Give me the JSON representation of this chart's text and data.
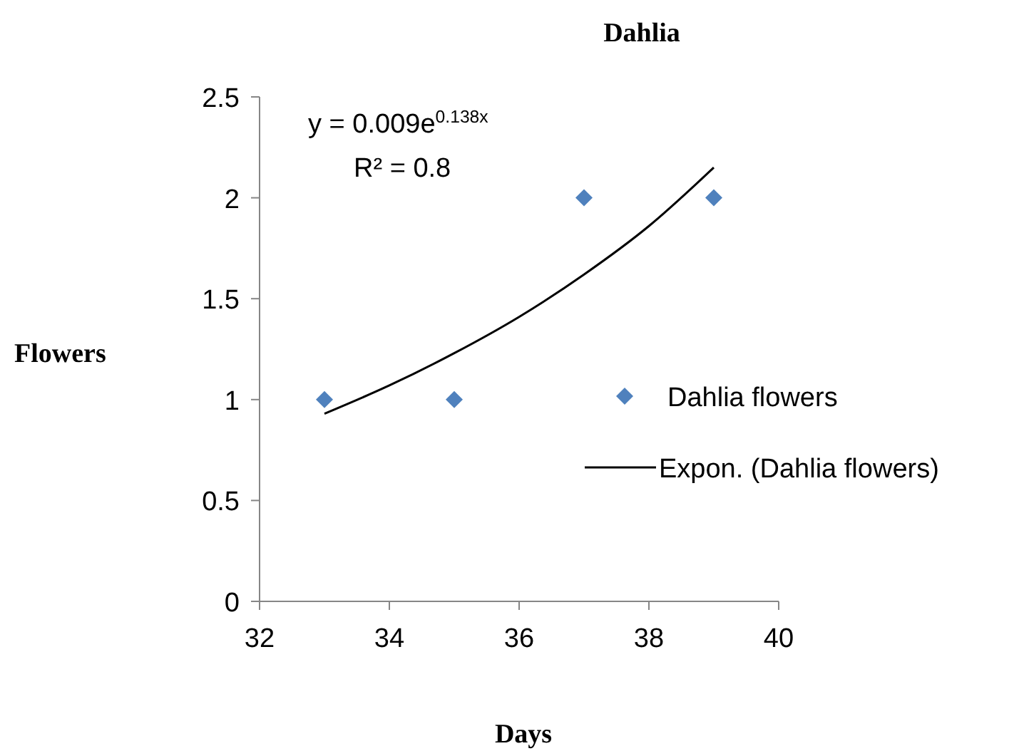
{
  "chart_data": {
    "type": "scatter",
    "title": "Dahlia",
    "xlabel": "Days",
    "ylabel": "Flowers",
    "xlim": [
      32,
      40
    ],
    "xticks": [
      32,
      34,
      36,
      38,
      40
    ],
    "ylim": [
      0,
      2.5
    ],
    "yticks": [
      0,
      0.5,
      1,
      1.5,
      2,
      2.5
    ],
    "grid": false,
    "legend": "right",
    "marker": "diamond",
    "annotations": [
      "y = 0.009e$^{0.138x}$",
      "R² = 0.8"
    ],
    "series": [
      {
        "name": "Dahlia flowers",
        "color": "#4f81bd",
        "x": [
          33,
          35,
          37,
          39
        ],
        "values": [
          1,
          1,
          2,
          2
        ]
      },
      {
        "name": "Expon. (Dahlia flowers)",
        "type": "line",
        "color": "#000000",
        "marker": "none",
        "line_style": "solid",
        "x": [
          33,
          34,
          35,
          36,
          37,
          38,
          39
        ],
        "values": [
          0.93,
          1.07,
          1.23,
          1.41,
          1.62,
          1.86,
          2.15
        ]
      }
    ]
  }
}
